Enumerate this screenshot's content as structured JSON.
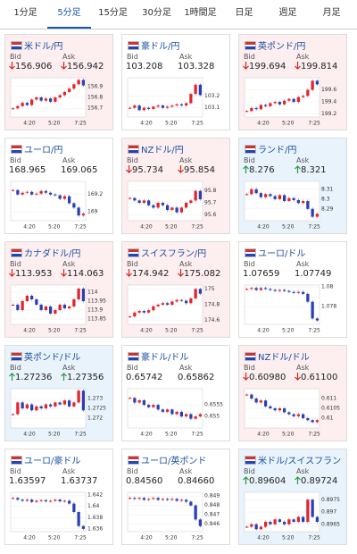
{
  "tabs": [
    "1分足",
    "5分足",
    "15分足",
    "30分足",
    "1時間足",
    "日足",
    "週足",
    "月足"
  ],
  "active_tab": 1,
  "labels": {
    "bid": "Bid",
    "ask": "Ask"
  },
  "cards": [
    {
      "title": "米ドル/円",
      "trend": "down",
      "bid": "156.906",
      "ask": "156.942",
      "chart": {
        "ylim": [
          156.62,
          156.98
        ],
        "yticks": [
          156.9,
          156.8,
          156.7
        ],
        "xticks": [
          "4:20",
          "5:20",
          "7:25"
        ],
        "closes": [
          156.7,
          156.72,
          156.75,
          156.73,
          156.78,
          156.8,
          156.77,
          156.79,
          156.76,
          156.8,
          156.82,
          156.85,
          156.88,
          156.92,
          156.96,
          156.91
        ]
      }
    },
    {
      "title": "豪ドル/円",
      "trend": "none",
      "bid": "103.208",
      "ask": "103.328",
      "chart": {
        "ylim": [
          103.02,
          103.36
        ],
        "yticks": [
          103.2,
          103.1
        ],
        "xticks": [
          "4:20",
          "5:20",
          "7:25"
        ],
        "closes": [
          103.1,
          103.12,
          103.08,
          103.1,
          103.09,
          103.11,
          103.12,
          103.1,
          103.11,
          103.12,
          103.13,
          103.12,
          103.14,
          103.22,
          103.3,
          103.21
        ]
      }
    },
    {
      "title": "英ポンド/円",
      "trend": "down",
      "bid": "199.694",
      "ask": "199.814",
      "chart": {
        "ylim": [
          199.15,
          199.8
        ],
        "yticks": [
          199.6,
          199.4,
          199.2
        ],
        "xticks": [
          "4:20",
          "5:20",
          "7:25"
        ],
        "closes": [
          199.25,
          199.3,
          199.28,
          199.35,
          199.33,
          199.38,
          199.4,
          199.36,
          199.42,
          199.45,
          199.4,
          199.48,
          199.5,
          199.6,
          199.75,
          199.69
        ]
      }
    },
    {
      "title": "ユーロ/円",
      "trend": "none",
      "bid": "168.965",
      "ask": "169.065",
      "chart": {
        "ylim": [
          168.9,
          169.35
        ],
        "yticks": [
          169.2,
          169
        ],
        "xticks": [
          "4:20",
          "5:20",
          "7:25"
        ],
        "closes": [
          169.25,
          169.2,
          169.22,
          169.23,
          169.2,
          169.21,
          169.24,
          169.22,
          169.2,
          169.19,
          169.15,
          169.18,
          169.1,
          169.05,
          168.96,
          168.98
        ]
      }
    },
    {
      "title": "NZドル/円",
      "trend": "down",
      "bid": "95.734",
      "ask": "95.854",
      "chart": {
        "ylim": [
          95.55,
          95.88
        ],
        "yticks": [
          95.8,
          95.7,
          95.6
        ],
        "xticks": [
          "4:20",
          "5:20",
          "7:25"
        ],
        "closes": [
          95.74,
          95.72,
          95.7,
          95.72,
          95.68,
          95.66,
          95.7,
          95.68,
          95.64,
          95.66,
          95.62,
          95.66,
          95.7,
          95.72,
          95.8,
          95.73
        ]
      }
    },
    {
      "title": "ランド/円",
      "trend": "up",
      "bid": "8.276",
      "ask": "8.321",
      "chart": {
        "ylim": [
          8.278,
          8.318
        ],
        "yticks": [
          8.31,
          8.3,
          8.29
        ],
        "xticks": [
          "4:20",
          "5:20",
          "7:25"
        ],
        "closes": [
          8.305,
          8.31,
          8.306,
          8.302,
          8.305,
          8.303,
          8.3,
          8.304,
          8.298,
          8.301,
          8.299,
          8.296,
          8.298,
          8.29,
          8.282,
          8.285
        ]
      }
    },
    {
      "title": "カナダドル/円",
      "trend": "down",
      "bid": "113.953",
      "ask": "114.063",
      "chart": {
        "ylim": [
          113.82,
          114.04
        ],
        "yticks": [
          114,
          113.95,
          113.9,
          113.85
        ],
        "xticks": [
          "4:20",
          "5:20",
          "7:25"
        ],
        "closes": [
          113.93,
          113.9,
          113.95,
          113.98,
          113.96,
          113.93,
          113.9,
          113.92,
          113.88,
          113.9,
          113.93,
          113.91,
          113.92,
          113.96,
          114.02,
          113.95
        ]
      }
    },
    {
      "title": "スイスフラン/円",
      "trend": "down",
      "bid": "174.942",
      "ask": "175.082",
      "chart": {
        "ylim": [
          174.55,
          175.05
        ],
        "yticks": [
          175,
          174.8,
          174.6
        ],
        "xticks": [
          "4:20",
          "5:20",
          "7:25"
        ],
        "closes": [
          174.65,
          174.7,
          174.72,
          174.7,
          174.73,
          174.78,
          174.8,
          174.82,
          174.8,
          174.84,
          174.86,
          174.85,
          174.82,
          174.88,
          175.0,
          174.94
        ]
      }
    },
    {
      "title": "ユーロ/ドル",
      "trend": "none",
      "bid": "1.07659",
      "ask": "1.07749",
      "chart": {
        "ylim": [
          1.0762,
          1.0802
        ],
        "yticks": [
          1.08,
          1.078
        ],
        "xticks": [
          "4:20",
          "5:20",
          "7:25"
        ],
        "closes": [
          1.0798,
          1.0799,
          1.0797,
          1.0799,
          1.0798,
          1.0797,
          1.0796,
          1.0797,
          1.0796,
          1.0795,
          1.0794,
          1.0795,
          1.0793,
          1.0785,
          1.0768,
          1.0766
        ]
      }
    },
    {
      "title": "英ポンド/ドル",
      "trend": "up",
      "bid": "1.27236",
      "ask": "1.27356",
      "chart": {
        "ylim": [
          1.2715,
          1.2735
        ],
        "yticks": [
          1.273,
          1.2725,
          1.272
        ],
        "xticks": [
          "4:20",
          "5:20",
          "7:25"
        ],
        "closes": [
          1.2722,
          1.2728,
          1.2725,
          1.2727,
          1.2724,
          1.2726,
          1.2725,
          1.2727,
          1.2726,
          1.2728,
          1.2727,
          1.2729,
          1.2726,
          1.2728,
          1.2734,
          1.2724
        ]
      }
    },
    {
      "title": "豪ドル/ドル",
      "trend": "none",
      "bid": "0.65742",
      "ask": "0.65862",
      "chart": {
        "ylim": [
          0.6545,
          0.6562
        ],
        "yticks": [
          0.6555,
          0.655
        ],
        "xticks": [
          "4:20",
          "5:20",
          "7:25"
        ],
        "closes": [
          0.6558,
          0.6556,
          0.6557,
          0.6555,
          0.6554,
          0.6555,
          0.6553,
          0.6552,
          0.6553,
          0.6551,
          0.6552,
          0.655,
          0.6551,
          0.6549,
          0.655,
          0.6551
        ]
      }
    },
    {
      "title": "NZドル/ドル",
      "trend": "down",
      "bid": "0.60980",
      "ask": "0.61100",
      "chart": {
        "ylim": [
          0.6095,
          0.6115
        ],
        "yticks": [
          0.611,
          0.6105,
          0.61
        ],
        "xticks": [
          "4:20",
          "5:20",
          "7:25"
        ],
        "closes": [
          0.6112,
          0.611,
          0.6108,
          0.6109,
          0.6106,
          0.6105,
          0.6104,
          0.6105,
          0.6103,
          0.6102,
          0.6101,
          0.6102,
          0.61,
          0.6099,
          0.6098,
          0.6099
        ]
      }
    },
    {
      "title": "ユーロ/豪ドル",
      "trend": "none",
      "bid": "1.63597",
      "ask": "1.63737",
      "chart": {
        "ylim": [
          1.6355,
          1.6425
        ],
        "yticks": [
          1.642,
          1.64,
          1.638,
          1.636
        ],
        "xticks": [
          "4:20",
          "5:20",
          "7:25"
        ],
        "closes": [
          1.6415,
          1.6412,
          1.641,
          1.6412,
          1.6408,
          1.641,
          1.6411,
          1.6409,
          1.641,
          1.6412,
          1.6409,
          1.641,
          1.6405,
          1.639,
          1.6365,
          1.636
        ]
      }
    },
    {
      "title": "ユーロ/英ポンド",
      "trend": "none",
      "bid": "0.84560",
      "ask": "0.84660",
      "chart": {
        "ylim": [
          0.8452,
          0.8494
        ],
        "yticks": [
          0.849,
          0.848,
          0.847,
          0.846
        ],
        "xticks": [
          "4:20",
          "5:20",
          "7:25"
        ],
        "closes": [
          0.8488,
          0.8487,
          0.8488,
          0.8486,
          0.8487,
          0.8488,
          0.8486,
          0.8487,
          0.8486,
          0.8487,
          0.8485,
          0.8486,
          0.8484,
          0.848,
          0.8465,
          0.8458
        ]
      }
    },
    {
      "title": "米ドル/スイスフラン",
      "trend": "up",
      "bid": "0.89604",
      "ask": "0.89724",
      "chart": {
        "ylim": [
          0.8962,
          0.8978
        ],
        "yticks": [
          0.8975,
          0.897,
          0.8965
        ],
        "xticks": [
          "4:20",
          "5:20",
          "7:25"
        ],
        "closes": [
          0.8964,
          0.8965,
          0.8963,
          0.8964,
          0.8966,
          0.8965,
          0.8967,
          0.8966,
          0.8965,
          0.8967,
          0.8966,
          0.8968,
          0.8966,
          0.8975,
          0.8968,
          0.8966
        ]
      }
    }
  ]
}
